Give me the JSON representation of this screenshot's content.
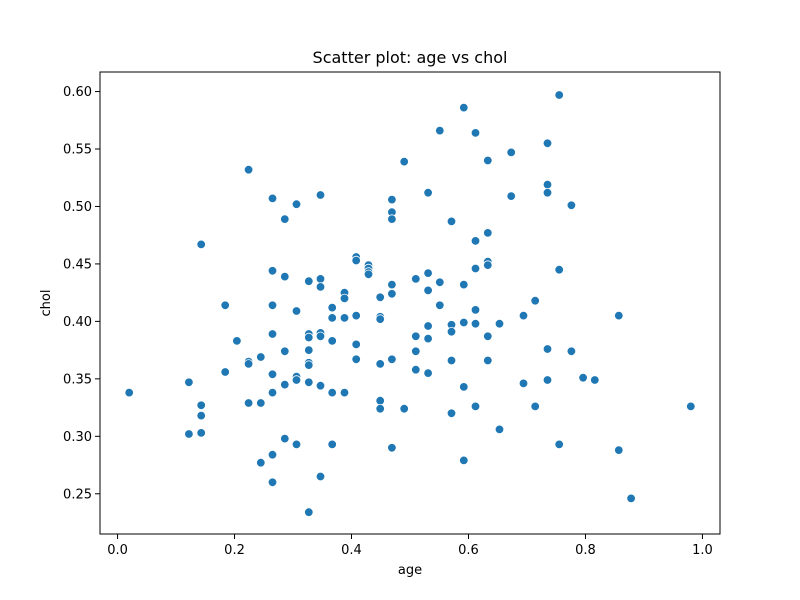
{
  "chart_data": {
    "type": "scatter",
    "title": "Scatter plot: age vs chol",
    "xlabel": "age",
    "ylabel": "chol",
    "xlim": [
      -0.03,
      1.03
    ],
    "ylim": [
      0.215,
      0.617
    ],
    "xticks": [
      0.0,
      0.2,
      0.4,
      0.6,
      0.8,
      1.0
    ],
    "xtick_labels": [
      "0.0",
      "0.2",
      "0.4",
      "0.6",
      "0.8",
      "1.0"
    ],
    "yticks": [
      0.25,
      0.3,
      0.35,
      0.4,
      0.45,
      0.5,
      0.55,
      0.6
    ],
    "ytick_labels": [
      "0.25",
      "0.30",
      "0.35",
      "0.40",
      "0.45",
      "0.50",
      "0.55",
      "0.60"
    ],
    "grid": false,
    "marker_color": "#1f77b4",
    "points": [
      [
        0.02,
        0.338
      ],
      [
        0.122,
        0.347
      ],
      [
        0.122,
        0.302
      ],
      [
        0.143,
        0.467
      ],
      [
        0.143,
        0.327
      ],
      [
        0.143,
        0.318
      ],
      [
        0.143,
        0.303
      ],
      [
        0.184,
        0.414
      ],
      [
        0.184,
        0.356
      ],
      [
        0.204,
        0.383
      ],
      [
        0.224,
        0.532
      ],
      [
        0.224,
        0.365
      ],
      [
        0.224,
        0.363
      ],
      [
        0.224,
        0.329
      ],
      [
        0.245,
        0.369
      ],
      [
        0.245,
        0.329
      ],
      [
        0.245,
        0.277
      ],
      [
        0.265,
        0.507
      ],
      [
        0.265,
        0.444
      ],
      [
        0.265,
        0.414
      ],
      [
        0.265,
        0.389
      ],
      [
        0.265,
        0.354
      ],
      [
        0.265,
        0.338
      ],
      [
        0.265,
        0.284
      ],
      [
        0.265,
        0.26
      ],
      [
        0.286,
        0.489
      ],
      [
        0.286,
        0.439
      ],
      [
        0.286,
        0.374
      ],
      [
        0.286,
        0.345
      ],
      [
        0.286,
        0.298
      ],
      [
        0.306,
        0.502
      ],
      [
        0.306,
        0.409
      ],
      [
        0.306,
        0.352
      ],
      [
        0.306,
        0.349
      ],
      [
        0.306,
        0.293
      ],
      [
        0.327,
        0.435
      ],
      [
        0.327,
        0.389
      ],
      [
        0.327,
        0.386
      ],
      [
        0.327,
        0.375
      ],
      [
        0.327,
        0.364
      ],
      [
        0.327,
        0.362
      ],
      [
        0.327,
        0.347
      ],
      [
        0.327,
        0.234
      ],
      [
        0.347,
        0.51
      ],
      [
        0.347,
        0.437
      ],
      [
        0.347,
        0.43
      ],
      [
        0.347,
        0.39
      ],
      [
        0.347,
        0.387
      ],
      [
        0.347,
        0.344
      ],
      [
        0.347,
        0.265
      ],
      [
        0.367,
        0.412
      ],
      [
        0.367,
        0.403
      ],
      [
        0.367,
        0.383
      ],
      [
        0.367,
        0.338
      ],
      [
        0.367,
        0.293
      ],
      [
        0.388,
        0.425
      ],
      [
        0.388,
        0.42
      ],
      [
        0.388,
        0.403
      ],
      [
        0.388,
        0.338
      ],
      [
        0.408,
        0.456
      ],
      [
        0.408,
        0.453
      ],
      [
        0.408,
        0.405
      ],
      [
        0.408,
        0.38
      ],
      [
        0.408,
        0.367
      ],
      [
        0.429,
        0.449
      ],
      [
        0.429,
        0.446
      ],
      [
        0.429,
        0.443
      ],
      [
        0.429,
        0.441
      ],
      [
        0.449,
        0.421
      ],
      [
        0.449,
        0.404
      ],
      [
        0.449,
        0.402
      ],
      [
        0.449,
        0.363
      ],
      [
        0.449,
        0.331
      ],
      [
        0.449,
        0.324
      ],
      [
        0.469,
        0.506
      ],
      [
        0.469,
        0.495
      ],
      [
        0.469,
        0.489
      ],
      [
        0.469,
        0.432
      ],
      [
        0.469,
        0.424
      ],
      [
        0.469,
        0.367
      ],
      [
        0.469,
        0.29
      ],
      [
        0.49,
        0.539
      ],
      [
        0.49,
        0.324
      ],
      [
        0.51,
        0.437
      ],
      [
        0.51,
        0.387
      ],
      [
        0.51,
        0.374
      ],
      [
        0.51,
        0.358
      ],
      [
        0.531,
        0.512
      ],
      [
        0.531,
        0.442
      ],
      [
        0.531,
        0.427
      ],
      [
        0.531,
        0.396
      ],
      [
        0.531,
        0.385
      ],
      [
        0.531,
        0.355
      ],
      [
        0.551,
        0.566
      ],
      [
        0.551,
        0.434
      ],
      [
        0.551,
        0.414
      ],
      [
        0.571,
        0.487
      ],
      [
        0.571,
        0.397
      ],
      [
        0.571,
        0.391
      ],
      [
        0.571,
        0.366
      ],
      [
        0.571,
        0.32
      ],
      [
        0.592,
        0.586
      ],
      [
        0.592,
        0.432
      ],
      [
        0.592,
        0.399
      ],
      [
        0.592,
        0.343
      ],
      [
        0.592,
        0.279
      ],
      [
        0.612,
        0.564
      ],
      [
        0.612,
        0.47
      ],
      [
        0.612,
        0.446
      ],
      [
        0.612,
        0.41
      ],
      [
        0.612,
        0.398
      ],
      [
        0.612,
        0.326
      ],
      [
        0.633,
        0.54
      ],
      [
        0.633,
        0.477
      ],
      [
        0.633,
        0.452
      ],
      [
        0.633,
        0.449
      ],
      [
        0.633,
        0.387
      ],
      [
        0.633,
        0.366
      ],
      [
        0.653,
        0.398
      ],
      [
        0.653,
        0.306
      ],
      [
        0.673,
        0.547
      ],
      [
        0.673,
        0.509
      ],
      [
        0.694,
        0.405
      ],
      [
        0.694,
        0.346
      ],
      [
        0.714,
        0.418
      ],
      [
        0.714,
        0.326
      ],
      [
        0.735,
        0.555
      ],
      [
        0.735,
        0.519
      ],
      [
        0.735,
        0.512
      ],
      [
        0.735,
        0.376
      ],
      [
        0.735,
        0.349
      ],
      [
        0.755,
        0.597
      ],
      [
        0.755,
        0.445
      ],
      [
        0.755,
        0.293
      ],
      [
        0.776,
        0.501
      ],
      [
        0.776,
        0.374
      ],
      [
        0.796,
        0.351
      ],
      [
        0.816,
        0.349
      ],
      [
        0.857,
        0.405
      ],
      [
        0.857,
        0.288
      ],
      [
        0.878,
        0.246
      ],
      [
        0.98,
        0.326
      ]
    ]
  }
}
